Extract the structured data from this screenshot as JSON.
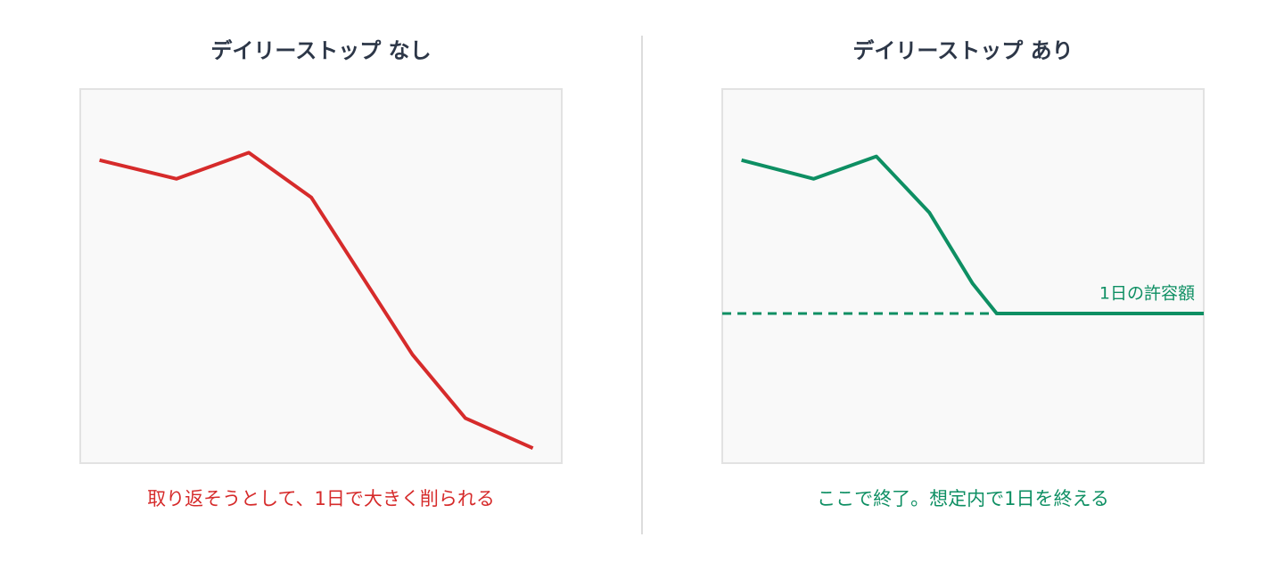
{
  "chart_data": [
    {
      "type": "line",
      "title": "デイリーストップ なし",
      "caption": "取り返そうとして、1日で大きく削られる",
      "x": [
        4,
        20,
        35,
        48,
        69,
        80,
        94
      ],
      "values": [
        81,
        76,
        83,
        71,
        29,
        12,
        4
      ],
      "color": "#d62b2b",
      "xlim": [
        0,
        100
      ],
      "ylim": [
        0,
        100
      ]
    },
    {
      "type": "line",
      "title": "デイリーストップ あり",
      "caption": "ここで終了。想定内で1日を終える",
      "x": [
        4,
        19,
        32,
        43,
        52,
        57,
        100
      ],
      "values": [
        81,
        76,
        82,
        67,
        48,
        40,
        40
      ],
      "color": "#0e8f63",
      "xlim": [
        0,
        100
      ],
      "ylim": [
        0,
        100
      ],
      "threshold": {
        "value": 40,
        "label": "1日の許容額"
      }
    }
  ]
}
